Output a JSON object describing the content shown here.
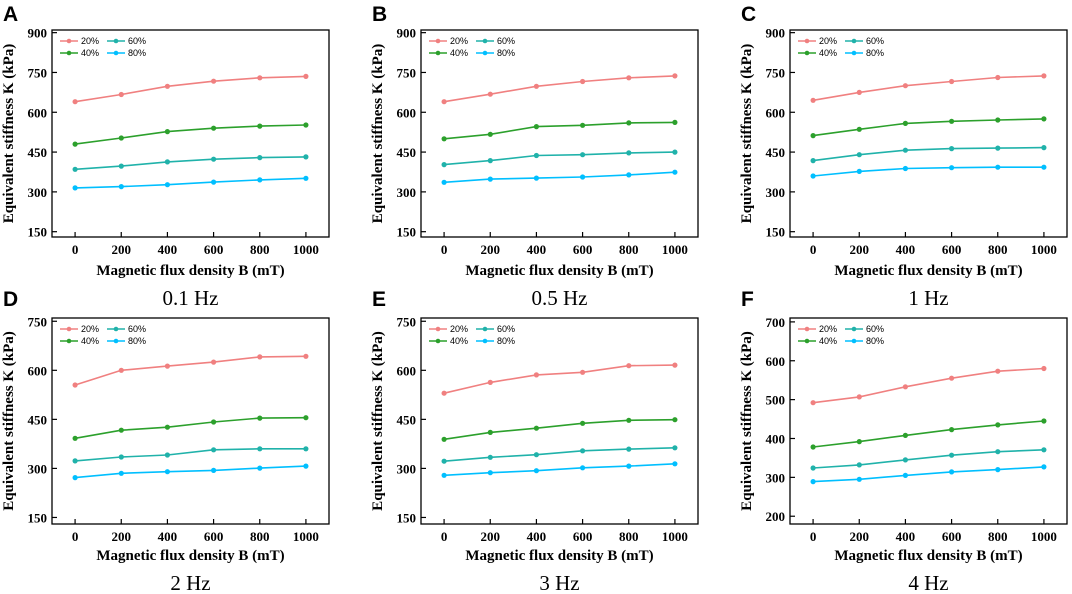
{
  "legend_order": [
    0,
    2,
    1,
    3
  ],
  "chart_data": [
    {
      "panel": "A",
      "type": "line",
      "frequency_label": "0.1 Hz",
      "xlabel": "Magnetic flux density B (mT)",
      "ylabel": "Equivalent stiffness K (kPa)",
      "x": [
        0,
        200,
        400,
        600,
        800,
        1000
      ],
      "xticks": [
        "0",
        "200",
        "400",
        "600",
        "800",
        "1000"
      ],
      "xlim": [
        -100,
        1100
      ],
      "yticks": [
        "150",
        "300",
        "450",
        "600",
        "750",
        "900"
      ],
      "ytick_values": [
        150,
        300,
        450,
        600,
        750,
        900
      ],
      "ylim": [
        130,
        910
      ],
      "series": [
        {
          "name": "20%",
          "color": "#f08080",
          "values": [
            640,
            667,
            698,
            717,
            730,
            735
          ]
        },
        {
          "name": "40%",
          "color": "#2ca02c",
          "values": [
            480,
            503,
            527,
            540,
            548,
            552
          ]
        },
        {
          "name": "60%",
          "color": "#20b2aa",
          "values": [
            385,
            397,
            413,
            423,
            429,
            432
          ]
        },
        {
          "name": "80%",
          "color": "#00bfff",
          "values": [
            315,
            320,
            327,
            337,
            345,
            351
          ]
        }
      ]
    },
    {
      "panel": "B",
      "type": "line",
      "frequency_label": "0.5 Hz",
      "xlabel": "Magnetic flux density B (mT)",
      "ylabel": "Equivalent stiffness K (kPa)",
      "x": [
        0,
        200,
        400,
        600,
        800,
        1000
      ],
      "xticks": [
        "0",
        "200",
        "400",
        "600",
        "800",
        "1000"
      ],
      "xlim": [
        -100,
        1100
      ],
      "yticks": [
        "150",
        "300",
        "450",
        "600",
        "750",
        "900"
      ],
      "ytick_values": [
        150,
        300,
        450,
        600,
        750,
        900
      ],
      "ylim": [
        130,
        910
      ],
      "series": [
        {
          "name": "20%",
          "color": "#f08080",
          "values": [
            640,
            668,
            698,
            716,
            730,
            737
          ]
        },
        {
          "name": "40%",
          "color": "#2ca02c",
          "values": [
            500,
            517,
            546,
            551,
            560,
            562
          ]
        },
        {
          "name": "60%",
          "color": "#20b2aa",
          "values": [
            403,
            418,
            437,
            440,
            447,
            450
          ]
        },
        {
          "name": "80%",
          "color": "#00bfff",
          "values": [
            336,
            348,
            352,
            356,
            364,
            374
          ]
        }
      ]
    },
    {
      "panel": "C",
      "type": "line",
      "frequency_label": "1 Hz",
      "xlabel": "Magnetic flux density B (mT)",
      "ylabel": "Equivalent stiffness K (kPa)",
      "x": [
        0,
        200,
        400,
        600,
        800,
        1000
      ],
      "xticks": [
        "0",
        "200",
        "400",
        "600",
        "800",
        "1000"
      ],
      "xlim": [
        -100,
        1100
      ],
      "yticks": [
        "150",
        "300",
        "450",
        "600",
        "750",
        "900"
      ],
      "ytick_values": [
        150,
        300,
        450,
        600,
        750,
        900
      ],
      "ylim": [
        130,
        910
      ],
      "series": [
        {
          "name": "20%",
          "color": "#f08080",
          "values": [
            645,
            675,
            700,
            716,
            731,
            737
          ]
        },
        {
          "name": "40%",
          "color": "#2ca02c",
          "values": [
            512,
            536,
            558,
            566,
            571,
            575
          ]
        },
        {
          "name": "60%",
          "color": "#20b2aa",
          "values": [
            418,
            440,
            457,
            463,
            465,
            467
          ]
        },
        {
          "name": "80%",
          "color": "#00bfff",
          "values": [
            360,
            377,
            388,
            391,
            393,
            393
          ]
        }
      ]
    },
    {
      "panel": "D",
      "type": "line",
      "frequency_label": "2 Hz",
      "xlabel": "Magnetic flux density B (mT)",
      "ylabel": "Equivalent stiffness K (kPa)",
      "x": [
        0,
        200,
        400,
        600,
        800,
        1000
      ],
      "xticks": [
        "0",
        "200",
        "400",
        "600",
        "800",
        "1000"
      ],
      "xlim": [
        -100,
        1100
      ],
      "yticks": [
        "150",
        "300",
        "450",
        "600",
        "750"
      ],
      "ytick_values": [
        150,
        300,
        450,
        600,
        750
      ],
      "ylim": [
        130,
        760
      ],
      "series": [
        {
          "name": "20%",
          "color": "#f08080",
          "values": [
            555,
            600,
            613,
            625,
            641,
            643
          ]
        },
        {
          "name": "40%",
          "color": "#2ca02c",
          "values": [
            392,
            417,
            426,
            442,
            454,
            455
          ]
        },
        {
          "name": "60%",
          "color": "#20b2aa",
          "values": [
            323,
            335,
            341,
            357,
            360,
            360
          ]
        },
        {
          "name": "80%",
          "color": "#00bfff",
          "values": [
            272,
            285,
            290,
            294,
            301,
            307
          ]
        }
      ]
    },
    {
      "panel": "E",
      "type": "line",
      "frequency_label": "3 Hz",
      "xlabel": "Magnetic flux density B (mT)",
      "ylabel": "Equivalent stiffness K (kPa)",
      "x": [
        0,
        200,
        400,
        600,
        800,
        1000
      ],
      "xticks": [
        "0",
        "200",
        "400",
        "600",
        "800",
        "1000"
      ],
      "xlim": [
        -100,
        1100
      ],
      "yticks": [
        "150",
        "300",
        "450",
        "600",
        "750"
      ],
      "ytick_values": [
        150,
        300,
        450,
        600,
        750
      ],
      "ylim": [
        130,
        760
      ],
      "series": [
        {
          "name": "20%",
          "color": "#f08080",
          "values": [
            530,
            563,
            586,
            594,
            614,
            616
          ]
        },
        {
          "name": "40%",
          "color": "#2ca02c",
          "values": [
            389,
            410,
            423,
            438,
            447,
            449
          ]
        },
        {
          "name": "60%",
          "color": "#20b2aa",
          "values": [
            322,
            334,
            342,
            354,
            359,
            363
          ]
        },
        {
          "name": "80%",
          "color": "#00bfff",
          "values": [
            279,
            287,
            293,
            302,
            307,
            314
          ]
        }
      ]
    },
    {
      "panel": "F",
      "type": "line",
      "frequency_label": "4 Hz",
      "xlabel": "Magnetic flux density B (mT)",
      "ylabel": "Equivalent stiffness K (kPa)",
      "x": [
        0,
        200,
        400,
        600,
        800,
        1000
      ],
      "xticks": [
        "0",
        "200",
        "400",
        "600",
        "800",
        "1000"
      ],
      "xlim": [
        -100,
        1100
      ],
      "yticks": [
        "200",
        "300",
        "400",
        "500",
        "600",
        "700"
      ],
      "ytick_values": [
        200,
        300,
        400,
        500,
        600,
        700
      ],
      "ylim": [
        180,
        710
      ],
      "series": [
        {
          "name": "20%",
          "color": "#f08080",
          "values": [
            492,
            507,
            533,
            555,
            573,
            580
          ]
        },
        {
          "name": "40%",
          "color": "#2ca02c",
          "values": [
            378,
            392,
            408,
            423,
            435,
            445
          ]
        },
        {
          "name": "60%",
          "color": "#20b2aa",
          "values": [
            324,
            332,
            345,
            357,
            366,
            371
          ]
        },
        {
          "name": "80%",
          "color": "#00bfff",
          "values": [
            289,
            295,
            305,
            314,
            320,
            327
          ]
        }
      ]
    }
  ]
}
